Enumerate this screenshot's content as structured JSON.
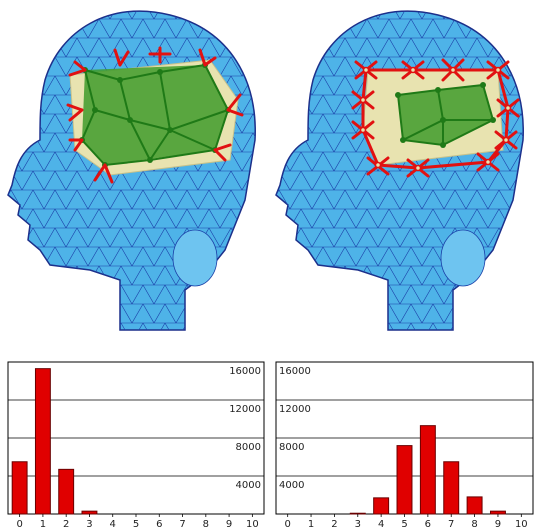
{
  "figure": {
    "colors": {
      "mesh_fill": "#4eb3e8",
      "mesh_edge": "#1a3fa8",
      "mesh_vertex": "#1c2f8a",
      "patch_fill": "#e8e3b0",
      "graph_fill": "#3f9b2c",
      "graph_edge": "#1f7a17",
      "marker": "#e11111",
      "bar_fill": "#e00000",
      "bar_edge": "#6a0000"
    }
  },
  "chart_data": [
    {
      "type": "bar",
      "title": "",
      "xlabel": "",
      "ylabel": "",
      "categories": [
        "0",
        "1",
        "2",
        "3",
        "4",
        "5",
        "6",
        "7",
        "8",
        "9",
        "10"
      ],
      "values": [
        5500,
        15300,
        4700,
        300,
        0,
        0,
        0,
        0,
        0,
        0,
        0
      ],
      "ylim": [
        0,
        16000
      ],
      "yticks": [
        "4000",
        "8000",
        "12000",
        "16000"
      ],
      "y_tick_side": "right",
      "grid": true
    },
    {
      "type": "bar",
      "title": "",
      "xlabel": "",
      "ylabel": "",
      "categories": [
        "0",
        "1",
        "2",
        "3",
        "4",
        "5",
        "6",
        "7",
        "8",
        "9",
        "10"
      ],
      "values": [
        0,
        0,
        0,
        80,
        1700,
        7200,
        9300,
        5500,
        1800,
        300,
        0
      ],
      "ylim": [
        0,
        16000
      ],
      "yticks": [
        "4000",
        "8000",
        "12000",
        "16000"
      ],
      "y_tick_side": "left",
      "grid": true
    }
  ]
}
